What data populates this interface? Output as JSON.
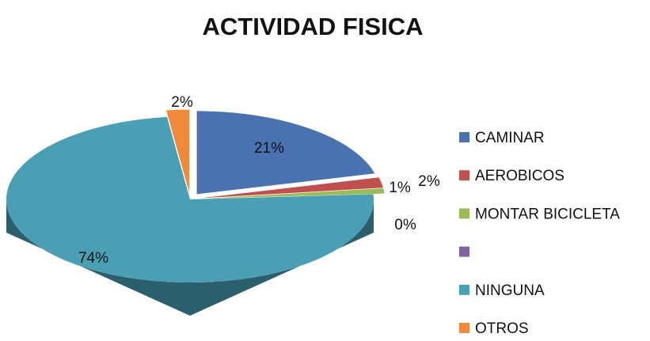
{
  "chart_data": {
    "type": "pie",
    "title": "ACTIVIDAD FISICA",
    "categories": [
      "CAMINAR",
      "AEROBICOS",
      "MONTAR BICICLETA",
      null,
      "NINGUNA",
      "OTROS"
    ],
    "values": [
      21,
      2,
      1,
      0,
      74,
      2
    ],
    "value_labels": [
      "21%",
      "2%",
      "1%",
      "0%",
      "74%",
      "2%"
    ],
    "colors": [
      "#4a72b0",
      "#c0504d",
      "#9bbb59",
      "#8064a2",
      "#4a9fb5",
      "#f0893a"
    ],
    "legend": "right"
  }
}
